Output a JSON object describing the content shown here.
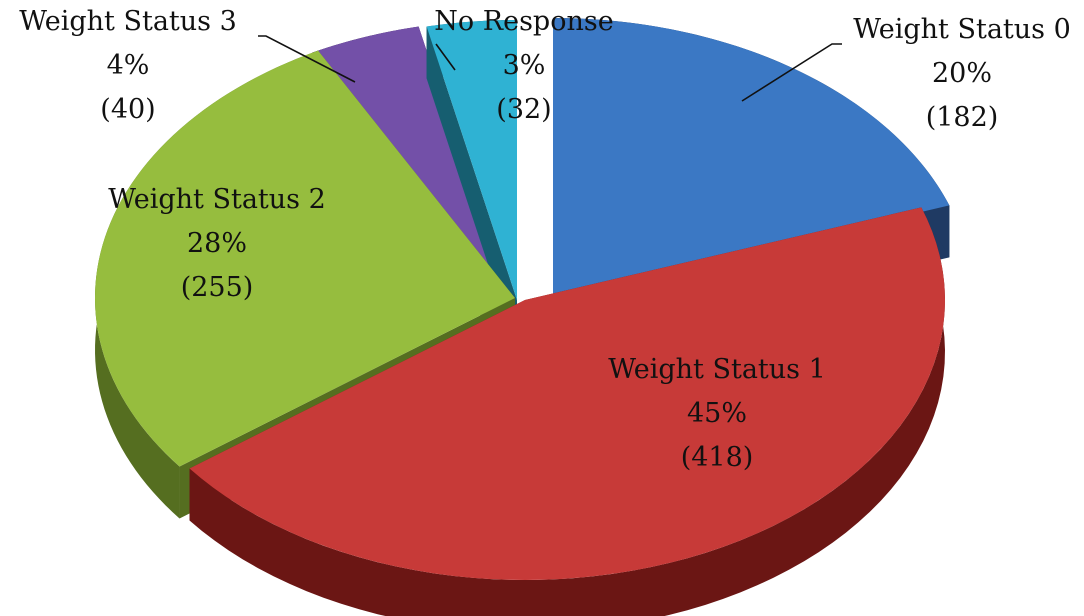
{
  "chart_data": {
    "type": "pie",
    "style": "3d-exploded",
    "title": "",
    "slices": [
      {
        "name": "Weight Status 0",
        "value": 182,
        "percent": "20%",
        "count_label": "(182)",
        "color": "#3B78C4",
        "side_color": "#1F3A63",
        "label_placement": "outside"
      },
      {
        "name": "Weight Status 1",
        "value": 418,
        "percent": "45%",
        "count_label": "(418)",
        "color": "#C73A38",
        "side_color": "#6B1614",
        "label_placement": "inside"
      },
      {
        "name": "Weight Status 2",
        "value": 255,
        "percent": "28%",
        "count_label": "(255)",
        "color": "#96BD3E",
        "side_color": "#556E20",
        "label_placement": "inside"
      },
      {
        "name": "Weight Status 3",
        "value": 40,
        "percent": "4%",
        "count_label": "(40)",
        "color": "#7350A8",
        "side_color": "#35224F",
        "label_placement": "outside"
      },
      {
        "name": "No Response",
        "value": 32,
        "percent": "3%",
        "count_label": "(32)",
        "color": "#2FB2D3",
        "side_color": "#165E70",
        "label_placement": "outside"
      }
    ]
  }
}
